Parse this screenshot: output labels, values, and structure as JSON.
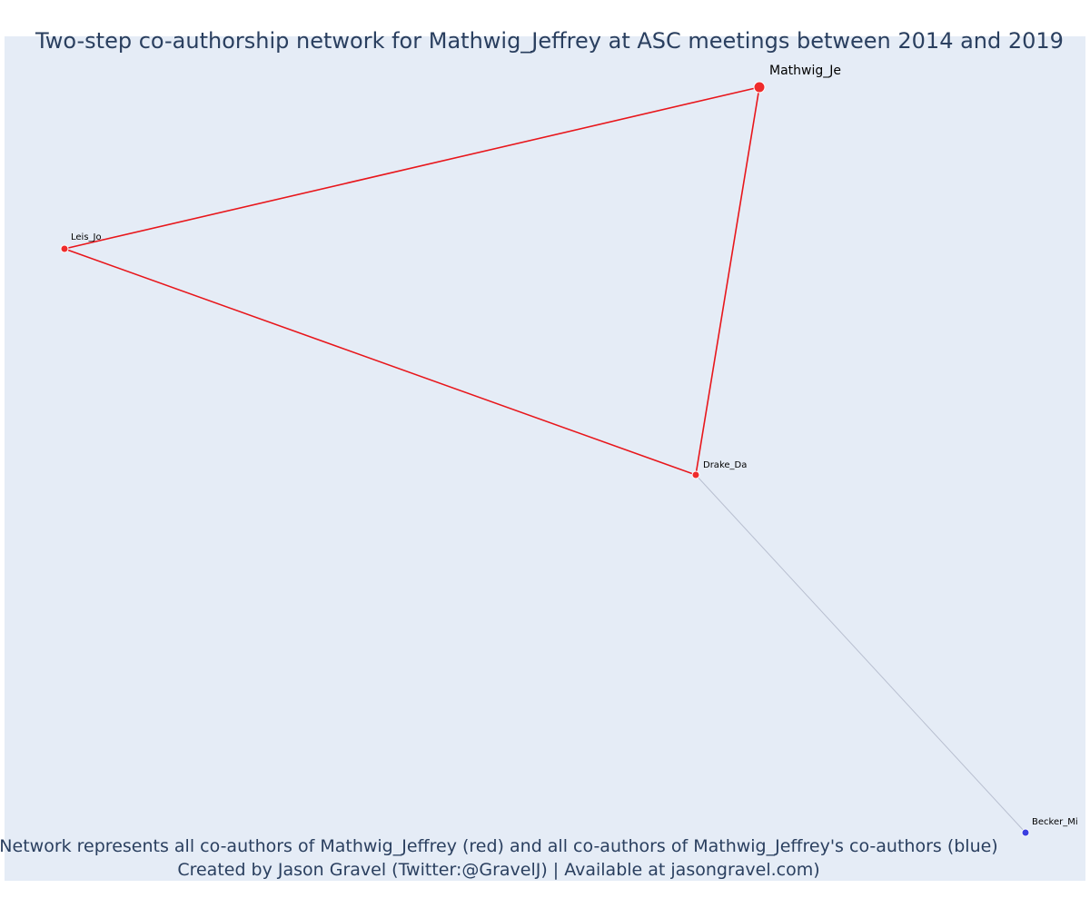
{
  "title": "Two-step co-authorship network for Mathwig_Jeffrey at ASC meetings between 2014 and 2019",
  "caption_line1": "Network represents all co-authors of Mathwig_Jeffrey (red) and all co-authors of Mathwig_Jeffrey's co-authors (blue)",
  "caption_line2": "Created by Jason Gravel (Twitter:@GravelJ) | Available at jasongravel.com)",
  "colors": {
    "plot_background": "#e5ecf6",
    "title": "#2a3f5f",
    "red_node": "#ef2b2b",
    "blue_node": "#3b3fe0",
    "red_edge": "#e8161b",
    "grey_edge": "#b8bfd0"
  },
  "nodes": [
    {
      "id": "mathwig",
      "label": "Mathwig_Je",
      "group": "ego"
    },
    {
      "id": "leis",
      "label": "Leis_Jo",
      "group": "coauthor"
    },
    {
      "id": "drake",
      "label": "Drake_Da",
      "group": "coauthor"
    },
    {
      "id": "becker",
      "label": "Becker_Mi",
      "group": "second-step"
    }
  ],
  "edges": [
    {
      "source": "mathwig",
      "target": "leis",
      "type": "red"
    },
    {
      "source": "mathwig",
      "target": "drake",
      "type": "red"
    },
    {
      "source": "leis",
      "target": "drake",
      "type": "red"
    },
    {
      "source": "drake",
      "target": "becker",
      "type": "grey"
    }
  ]
}
